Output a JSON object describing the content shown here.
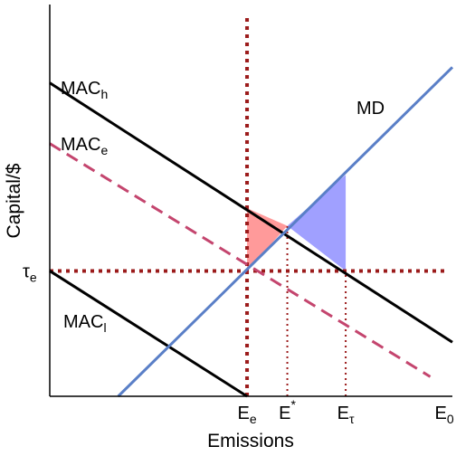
{
  "chart_data": {
    "type": "line",
    "xlabel": "Emissions",
    "ylabel": "Capital/$",
    "xlim": [
      0,
      10
    ],
    "ylim": [
      0,
      10
    ],
    "colors": {
      "mac_solid": "#000000",
      "mac_dashed": "#c4456e",
      "md": "#5a7fc7",
      "reference": "#9b1b1b",
      "shade_left": "#ff9a9a",
      "shade_right": "#a0a0ff"
    },
    "series": [
      {
        "name": "MACh",
        "label_main": "MAC",
        "label_sub": "h",
        "style": "solid",
        "color_key": "mac_solid",
        "x": [
          0,
          10
        ],
        "y": [
          8.0,
          1.38
        ]
      },
      {
        "name": "MACe",
        "label_main": "MAC",
        "label_sub": "e",
        "style": "dashed",
        "color_key": "mac_dashed",
        "x": [
          0,
          9.45
        ],
        "y": [
          6.45,
          0.5
        ]
      },
      {
        "name": "MACl",
        "label_main": "MAC",
        "label_sub": "l",
        "style": "solid",
        "color_key": "mac_solid",
        "x": [
          0,
          4.9
        ],
        "y": [
          3.2,
          0
        ]
      },
      {
        "name": "MD",
        "label_main": "MD",
        "label_sub": "",
        "style": "solid",
        "color_key": "md",
        "x": [
          1.7,
          10
        ],
        "y": [
          0,
          8.4
        ]
      }
    ],
    "reference_lines": [
      {
        "orientation": "vertical",
        "x": 4.9,
        "style": "thick-dotted"
      },
      {
        "orientation": "horizontal",
        "y": 3.2,
        "style": "thick-dotted"
      },
      {
        "orientation": "vertical",
        "x": 5.9,
        "y_top": 4.35,
        "style": "thin-dotted"
      },
      {
        "orientation": "vertical",
        "x": 7.35,
        "y_top": 3.2,
        "style": "thin-dotted"
      }
    ],
    "shaded_regions": [
      {
        "color_key": "shade_left",
        "points": [
          [
            4.9,
            3.2
          ],
          [
            4.9,
            4.8
          ],
          [
            5.9,
            4.35
          ]
        ]
      },
      {
        "color_key": "shade_right",
        "points": [
          [
            5.9,
            4.35
          ],
          [
            7.35,
            5.65
          ],
          [
            7.35,
            3.2
          ]
        ]
      }
    ],
    "x_ticks": [
      {
        "x": 4.9,
        "main": "E",
        "sub": "e",
        "sup": ""
      },
      {
        "x": 5.9,
        "main": "E",
        "sub": "",
        "sup": "*"
      },
      {
        "x": 7.35,
        "main": "E",
        "sub": "τ",
        "sup": ""
      },
      {
        "x": 9.8,
        "main": "E",
        "sub": "0",
        "sup": ""
      }
    ],
    "y_ticks": [
      {
        "y": 3.2,
        "main": "τ",
        "sub": "e"
      }
    ],
    "grid": false,
    "legend": "none"
  }
}
